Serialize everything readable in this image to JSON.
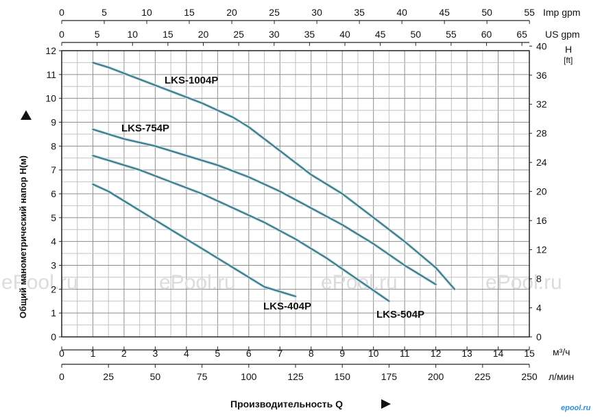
{
  "chart_data": {
    "type": "line",
    "xlabel": "Производительность Q",
    "ylabel": "Общий манометрический напор H(м)",
    "x_unit_main": "м³/ч",
    "x_unit_lpm": "л/мин",
    "x_unit_us": "US gpm",
    "x_unit_imp": "Imp gpm",
    "y_right_unit_line1": "H",
    "y_right_unit_line2": "[ft]",
    "xlim": [
      0,
      15
    ],
    "ylim": [
      0,
      12
    ],
    "grid": true,
    "x_ticks": [
      "0",
      "1",
      "2",
      "3",
      "4",
      "5",
      "6",
      "7",
      "8",
      "9",
      "10",
      "11",
      "12",
      "13",
      "14",
      "15"
    ],
    "y_ticks": [
      "0",
      "1",
      "2",
      "3",
      "4",
      "5",
      "6",
      "7",
      "8",
      "9",
      "10",
      "11",
      "12"
    ],
    "lpm_ticks": [
      {
        "v": 0,
        "label": "0"
      },
      {
        "v": 25,
        "label": "25"
      },
      {
        "v": 50,
        "label": "50"
      },
      {
        "v": 75,
        "label": "75"
      },
      {
        "v": 100,
        "label": "100"
      },
      {
        "v": 125,
        "label": "125"
      },
      {
        "v": 150,
        "label": "150"
      },
      {
        "v": 175,
        "label": "175"
      },
      {
        "v": 200,
        "label": "200"
      },
      {
        "v": 225,
        "label": "225"
      },
      {
        "v": 250,
        "label": "250"
      }
    ],
    "us_gpm_ticks": [
      {
        "v": 0,
        "label": "0"
      },
      {
        "v": 5,
        "label": "5"
      },
      {
        "v": 10,
        "label": "10"
      },
      {
        "v": 15,
        "label": "15"
      },
      {
        "v": 20,
        "label": "20"
      },
      {
        "v": 25,
        "label": "25"
      },
      {
        "v": 30,
        "label": "30"
      },
      {
        "v": 35,
        "label": "35"
      },
      {
        "v": 40,
        "label": "40"
      },
      {
        "v": 45,
        "label": "45"
      },
      {
        "v": 50,
        "label": "50"
      },
      {
        "v": 55,
        "label": "55"
      },
      {
        "v": 60,
        "label": "60"
      },
      {
        "v": 65,
        "label": "65"
      }
    ],
    "imp_gpm_ticks": [
      {
        "v": 0,
        "label": "0"
      },
      {
        "v": 5,
        "label": "5"
      },
      {
        "v": 10,
        "label": "10"
      },
      {
        "v": 15,
        "label": "15"
      },
      {
        "v": 20,
        "label": "20"
      },
      {
        "v": 25,
        "label": "25"
      },
      {
        "v": 30,
        "label": "30"
      },
      {
        "v": 35,
        "label": "35"
      },
      {
        "v": 40,
        "label": "40"
      },
      {
        "v": 45,
        "label": "45"
      },
      {
        "v": 50,
        "label": "50"
      },
      {
        "v": 55,
        "label": "55"
      }
    ],
    "ft_ticks": [
      {
        "v": 0,
        "label": "0"
      },
      {
        "v": 4,
        "label": "4"
      },
      {
        "v": 8,
        "label": "8"
      },
      {
        "v": 12,
        "label": "12"
      },
      {
        "v": 16,
        "label": "16"
      },
      {
        "v": 20,
        "label": "20"
      },
      {
        "v": 24,
        "label": "24"
      },
      {
        "v": 28,
        "label": "28"
      },
      {
        "v": 32,
        "label": "32"
      },
      {
        "v": 36,
        "label": "36"
      },
      {
        "v": 40,
        "label": "40"
      }
    ],
    "series": [
      {
        "name": "LKS-1004P",
        "color": "#3d7b8a",
        "x": [
          1.0,
          1.5,
          2.5,
          3.5,
          4.5,
          5.5,
          6.0,
          7.0,
          8.0,
          9.0,
          10.0,
          11.0,
          12.0,
          12.6
        ],
        "y": [
          11.5,
          11.3,
          10.8,
          10.3,
          9.8,
          9.2,
          8.8,
          7.8,
          6.8,
          6.0,
          5.0,
          4.0,
          2.9,
          2.0
        ]
      },
      {
        "name": "LKS-754P",
        "color": "#3d7b8a",
        "x": [
          1.0,
          2.0,
          3.0,
          4.0,
          5.0,
          6.0,
          7.0,
          8.0,
          9.0,
          10.0,
          11.0,
          12.0
        ],
        "y": [
          8.7,
          8.3,
          8.0,
          7.6,
          7.2,
          6.7,
          6.1,
          5.4,
          4.7,
          3.9,
          3.0,
          2.2
        ]
      },
      {
        "name": "LKS-504P",
        "color": "#3d7b8a",
        "x": [
          1.0,
          1.5,
          2.5,
          3.5,
          4.5,
          5.5,
          6.5,
          7.5,
          8.5,
          9.5,
          10.5
        ],
        "y": [
          7.6,
          7.4,
          7.0,
          6.5,
          6.0,
          5.4,
          4.8,
          4.1,
          3.3,
          2.4,
          1.5
        ]
      },
      {
        "name": "LKS-404P",
        "color": "#3d7b8a",
        "x": [
          1.0,
          1.5,
          2.5,
          3.5,
          4.5,
          5.5,
          6.5,
          7.5
        ],
        "y": [
          6.4,
          6.1,
          5.3,
          4.5,
          3.7,
          2.9,
          2.1,
          1.7
        ]
      }
    ]
  },
  "watermarks": [
    "ePool.ru",
    "ePool.ru",
    "ePool.ru",
    "ePool.ru"
  ],
  "logo_text": "epool.ru"
}
